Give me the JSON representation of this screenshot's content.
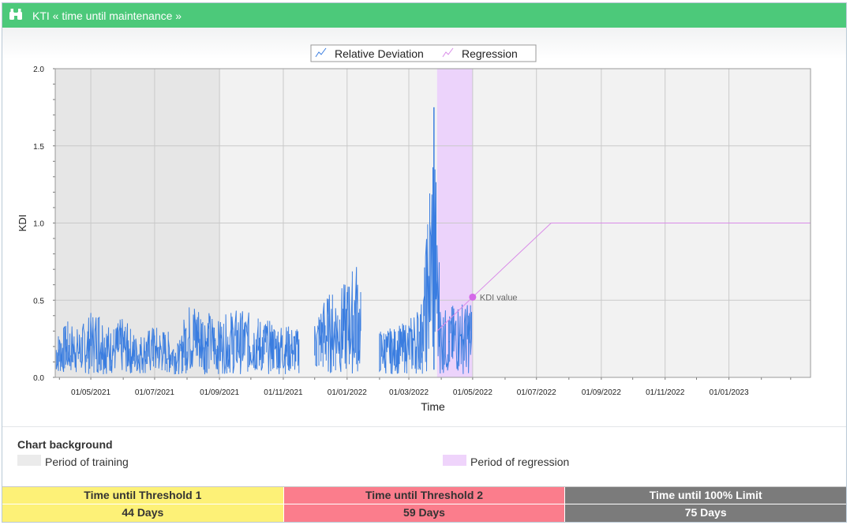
{
  "window": {
    "title": "KTI « time until maintenance »",
    "icon": "binoculars-icon"
  },
  "chart_data": {
    "type": "line",
    "xlabel": "Time",
    "ylabel": "KDI",
    "ylim": [
      0.0,
      2.0
    ],
    "yticks": [
      "0.0",
      "0.5",
      "1.0",
      "1.5",
      "2.0"
    ],
    "xlim": [
      "2021-03-28",
      "2023-03-20"
    ],
    "xticks": [
      "01/05/2021",
      "01/07/2021",
      "01/09/2021",
      "01/11/2021",
      "01/01/2022",
      "01/03/2022",
      "01/05/2022",
      "01/07/2022",
      "01/09/2022",
      "01/11/2022",
      "01/01/2023"
    ],
    "legend": [
      "Relative Deviation",
      "Regression"
    ],
    "legend_position": "top-center",
    "grid": true,
    "series": [
      {
        "name": "Relative Deviation",
        "color": "#3a7de0",
        "segments": [
          {
            "from": "2021-03-29",
            "to": "2021-11-17",
            "points": [
              [
                "2021-04-01",
                0.28
              ],
              [
                "2021-04-10",
                0.35
              ],
              [
                "2021-04-20",
                0.3
              ],
              [
                "2021-05-01",
                0.4
              ],
              [
                "2021-05-10",
                0.44
              ],
              [
                "2021-05-20",
                0.3
              ],
              [
                "2021-06-01",
                0.37
              ],
              [
                "2021-06-15",
                0.25
              ],
              [
                "2021-07-01",
                0.32
              ],
              [
                "2021-07-15",
                0.28
              ],
              [
                "2021-07-25",
                0.2
              ],
              [
                "2021-08-01",
                0.45
              ],
              [
                "2021-08-10",
                0.48
              ],
              [
                "2021-08-20",
                0.43
              ],
              [
                "2021-09-01",
                0.35
              ],
              [
                "2021-09-15",
                0.43
              ],
              [
                "2021-10-01",
                0.4
              ],
              [
                "2021-10-15",
                0.36
              ],
              [
                "2021-11-01",
                0.33
              ],
              [
                "2021-11-15",
                0.3
              ]
            ]
          },
          {
            "from": "2021-12-01",
            "to": "2022-01-15",
            "points": [
              [
                "2021-12-01",
                0.35
              ],
              [
                "2021-12-10",
                0.5
              ],
              [
                "2021-12-20",
                0.55
              ],
              [
                "2022-01-01",
                0.6
              ],
              [
                "2022-01-10",
                0.75
              ],
              [
                "2022-01-15",
                0.55
              ]
            ]
          },
          {
            "from": "2022-02-01",
            "to": "2022-04-10",
            "points": [
              [
                "2022-02-01",
                0.3
              ],
              [
                "2022-02-15",
                0.3
              ],
              [
                "2022-03-01",
                0.35
              ],
              [
                "2022-03-15",
                0.5
              ],
              [
                "2022-03-25",
                1.75
              ],
              [
                "2022-04-01",
                0.45
              ],
              [
                "2022-04-10",
                0.4
              ]
            ]
          },
          {
            "from": "2022-04-10",
            "to": "2022-05-01",
            "points": [
              [
                "2022-04-15",
                0.45
              ],
              [
                "2022-04-20",
                0.5
              ],
              [
                "2022-04-25",
                0.45
              ],
              [
                "2022-05-01",
                0.52
              ]
            ]
          }
        ]
      },
      {
        "name": "Regression",
        "color": "#d98be8",
        "points": [
          [
            "2022-03-28",
            0.3
          ],
          [
            "2022-05-01",
            0.52
          ],
          [
            "2022-07-15",
            1.0
          ],
          [
            "2023-03-20",
            1.0
          ]
        ]
      }
    ],
    "training_period": [
      "2021-03-28",
      "2021-09-01"
    ],
    "regression_period": [
      "2022-03-28",
      "2022-05-01"
    ],
    "annotation": {
      "label": "KDI value",
      "x": "2022-05-01",
      "y": 0.52,
      "color": "#d46ae8"
    },
    "colors": {
      "training_bg": "#e6e6e6",
      "regression_bg": "#ecd3fb",
      "plot_bg": "#f2f2f2",
      "grid": "#c9c9c9"
    }
  },
  "background_legend": {
    "title": "Chart background",
    "items": [
      {
        "label": "Period of training",
        "color": "#ebebeb"
      },
      {
        "label": "Period of regression",
        "color": "#efd4fb"
      }
    ]
  },
  "kpis": [
    {
      "label": "Time until Threshold 1",
      "value": "44 Days",
      "bg": "#fdf177",
      "fg": "#333333"
    },
    {
      "label": "Time until Threshold 2",
      "value": "59 Days",
      "bg": "#fb7d8c",
      "fg": "#333333"
    },
    {
      "label": "Time until 100% Limit",
      "value": "75 Days",
      "bg": "#7b7b7b",
      "fg": "#ffffff"
    }
  ]
}
